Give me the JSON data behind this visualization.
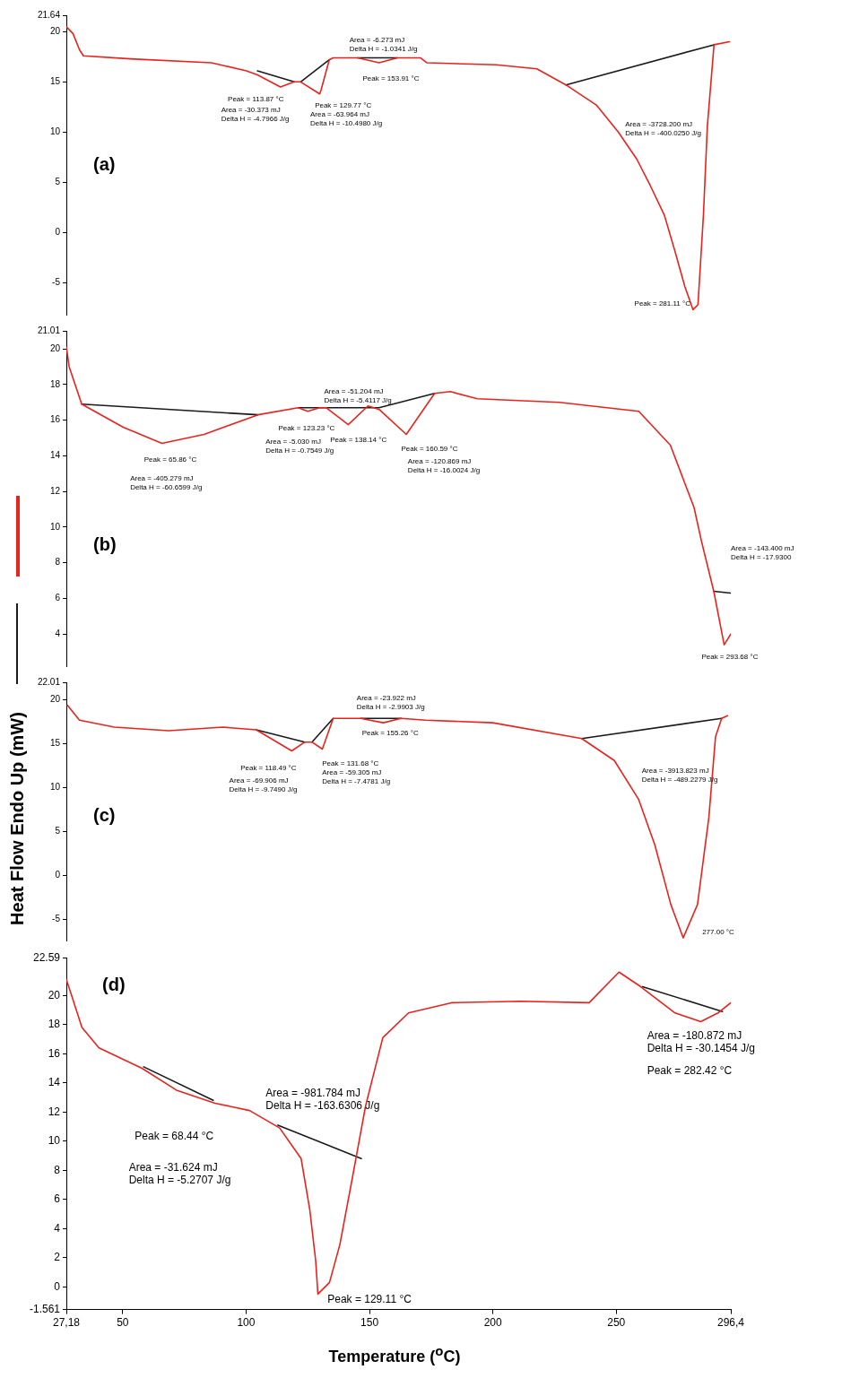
{
  "chart_data": [
    {
      "type": "line",
      "title": "(a)",
      "xlim": [
        27.18,
        296.4
      ],
      "ylim": [
        -8.2,
        21.64
      ],
      "yticks": [
        -5,
        0,
        5,
        10,
        15,
        20,
        21.64
      ],
      "tick_labels": "y",
      "marker": "none",
      "series": [
        {
          "color": "#e8231d",
          "x": [
            27.18,
            29.9,
            32.5,
            34.1,
            53.0,
            85.9,
            91.5,
            100.1,
            104.6,
            113.9,
            119.5,
            122.1,
            129.8,
            130.4,
            133.7,
            135.3,
            145.2,
            153.9,
            161.3,
            170.6,
            173.3,
            201.3,
            217.8,
            229.6,
            241.9,
            250.8,
            258.3,
            263.9,
            269.5,
            273.8,
            277.8,
            281.1,
            283.1,
            285.3,
            286.9,
            289.6,
            295.9
          ],
          "values": [
            20.5,
            19.8,
            18.2,
            17.6,
            17.3,
            16.9,
            16.6,
            16.1,
            15.7,
            14.5,
            15.0,
            15.0,
            13.8,
            14.2,
            17.2,
            17.4,
            17.4,
            16.9,
            17.4,
            17.4,
            16.9,
            16.7,
            16.3,
            14.7,
            12.7,
            10.0,
            7.3,
            4.6,
            1.7,
            -1.9,
            -5.4,
            -7.7,
            -7.2,
            1.7,
            10.6,
            18.7,
            19.0
          ]
        },
        {
          "color": "#1a1a1a",
          "x": [
            104.6,
            119.5,
            120.8,
            122.1,
            133.7,
            139.7,
            145.2,
            161.3,
            190.3,
            229.6,
            289.6
          ],
          "values": [
            16.1,
            15.0,
            null,
            15.0,
            17.2,
            null,
            17.4,
            17.4,
            null,
            14.7,
            18.7
          ]
        }
      ],
      "annotations": [
        "Peak = 113.87 °C",
        "Area = -30.373 mJ\nDelta H = -4.7966 J/g",
        "Peak = 129.77 °C",
        "Area = -63.964 mJ\nDelta H = -10.4980 J/g",
        "Area = -6.273 mJ\nDelta H = -1.0341 J/g",
        "Peak = 153.91 °C",
        "Area = -3728.200 mJ\nDelta H = -400.0250 J/g",
        "Peak = 281.11 °C"
      ]
    },
    {
      "type": "line",
      "title": "(b)",
      "xlim": [
        27.18,
        296.4
      ],
      "ylim": [
        2.2,
        21.01
      ],
      "yticks": [
        4,
        6,
        8,
        10,
        12,
        14,
        16,
        18,
        20,
        21.01
      ],
      "tick_labels": "y",
      "marker": "none",
      "series": [
        {
          "color": "#e8231d",
          "x": [
            27.2,
            28.3,
            33.4,
            50.2,
            65.9,
            83.0,
            104.8,
            121.1,
            125.0,
            129.8,
            132.4,
            141.4,
            149.4,
            153.9,
            164.9,
            176.4,
            182.8,
            193.7,
            226.9,
            259.1,
            271.9,
            281.5,
            284.7,
            289.5,
            293.7,
            296.4
          ],
          "values": [
            20.1,
            19.0,
            16.9,
            15.6,
            14.7,
            15.2,
            16.3,
            16.7,
            16.5,
            16.7,
            16.7,
            15.75,
            16.8,
            16.6,
            15.2,
            17.5,
            17.6,
            17.2,
            17.0,
            16.5,
            14.6,
            11.1,
            9.1,
            6.4,
            3.4,
            4.0
          ]
        },
        {
          "color": "#1a1a1a",
          "x": [
            33.4,
            104.8,
            110.7,
            121.1,
            153.9,
            176.4,
            230.1,
            289.5,
            296.4
          ],
          "values": [
            16.9,
            16.3,
            null,
            16.7,
            16.7,
            17.5,
            null,
            6.4,
            6.3
          ]
        }
      ],
      "annotations": [
        "Peak = 65.86 °C",
        "Area = -405.279 mJ\nDelta H = -60.6599 J/g",
        "Peak = 123.23 °C",
        "Area = -5.030 mJ\nDelta H = -0.7549 J/g",
        "Area = -51.204 mJ\nDelta H = -5.4117 J/g",
        "Peak = 138.14 °C",
        "Peak = 160.59 °C",
        "Area = -120.869 mJ\nDelta H = -16.0024 J/g",
        "Area = -143.400 mJ\nDelta H = -17.9300",
        "Peak = 293.68 °C"
      ]
    },
    {
      "type": "line",
      "title": "(c)",
      "xlim": [
        27.18,
        296.4
      ],
      "ylim": [
        -7.4,
        22.01
      ],
      "yticks": [
        -5,
        0,
        5,
        10,
        15,
        20,
        22.01
      ],
      "tick_labels": "y",
      "marker": "none",
      "series": [
        {
          "color": "#e8231d",
          "x": [
            27.6,
            32.5,
            46.6,
            68.6,
            90.6,
            104.1,
            118.5,
            123.8,
            126.7,
            130.9,
            135.3,
            146.4,
            155.6,
            162.8,
            172.7,
            199.9,
            236.0,
            249.2,
            259.0,
            265.6,
            272.1,
            277.1,
            282.9,
            287.5,
            290.2,
            292.7,
            295.1
          ],
          "values": [
            19.4,
            17.7,
            16.9,
            16.5,
            16.9,
            16.6,
            14.2,
            15.2,
            15.2,
            14.4,
            17.9,
            17.9,
            17.4,
            17.9,
            17.7,
            17.4,
            15.6,
            13.1,
            8.7,
            3.5,
            -3.3,
            -7.1,
            -3.3,
            6.6,
            15.8,
            17.9,
            18.2
          ]
        },
        {
          "color": "#1a1a1a",
          "x": [
            104.1,
            123.8,
            125.4,
            126.7,
            135.3,
            140.4,
            146.4,
            162.8,
            189.5,
            236.0,
            292.7
          ],
          "values": [
            16.6,
            15.2,
            null,
            15.2,
            17.9,
            null,
            17.9,
            17.9,
            null,
            15.6,
            17.9
          ]
        }
      ],
      "annotations": [
        "Peak = 118.49 °C",
        "Area = -69.906 mJ\nDelta H = -9.7490 J/g",
        "Peak = 131.68 °C",
        "Area = -59.305 mJ\nDelta H = -7.4781 J/g",
        "Area = -23.922 mJ\nDelta H = -2.9903 J/g",
        "Peak = 155.26 °C",
        "Area = -3913.823 mJ\nDelta H = -489.2279 J/g",
        "277.00 °C"
      ]
    },
    {
      "type": "line",
      "title": "(d)",
      "xlabel": "Temperature ($^{o}$C)",
      "ylabel": "Heat Flow Endo Up (mW)",
      "xlim": [
        27.18,
        296.4
      ],
      "ylim": [
        -1.561,
        22.59
      ],
      "marker": "none",
      "xticks": [
        {
          "value": 27.18,
          "label": "27,18"
        },
        50,
        100,
        150,
        200,
        250,
        {
          "value": 296.4,
          "label": "296,4"
        }
      ],
      "yticks": [
        -1.561,
        0,
        2,
        4,
        6,
        8,
        10,
        12,
        14,
        16,
        18,
        20,
        22.59
      ],
      "series": [
        {
          "color": "#e8231d",
          "x": [
            27.18,
            29.3,
            33.5,
            40.4,
            57.8,
            71.8,
            87.4,
            101.4,
            113.6,
            122.3,
            125.8,
            128.2,
            129.1,
            133.8,
            138.0,
            143.2,
            148.4,
            155.4,
            165.8,
            183.2,
            211.1,
            239.0,
            251.1,
            259.9,
            273.8,
            284.2,
            291.2,
            296.4
          ],
          "values": [
            21.1,
            20.0,
            17.8,
            16.4,
            15.0,
            13.5,
            12.6,
            12.1,
            10.9,
            8.8,
            5.3,
            1.8,
            -0.5,
            0.3,
            2.9,
            7.6,
            12.4,
            17.1,
            18.8,
            19.5,
            19.6,
            19.5,
            21.6,
            20.6,
            18.8,
            18.2,
            18.8,
            19.5
          ]
        },
        {
          "color": "#1a1a1a",
          "x": [
            58.5,
            86.7,
            100,
            112.9,
            146.7,
            200,
            260.6,
            293.0
          ],
          "values": [
            15.1,
            12.8,
            null,
            11.1,
            8.8,
            null,
            20.6,
            18.9
          ]
        }
      ],
      "annotations": [
        "Peak = 68.44 °C",
        "Area = -31.624 mJ\nDelta H = -5.2707 J/g",
        "Area = -981.784 mJ\nDelta H = -163.6306 J/g",
        "Peak = 129.11 °C",
        "Area = -180.872 mJ\nDelta H = -30.1454 J/g",
        "Peak = 282.42 °C"
      ]
    }
  ]
}
